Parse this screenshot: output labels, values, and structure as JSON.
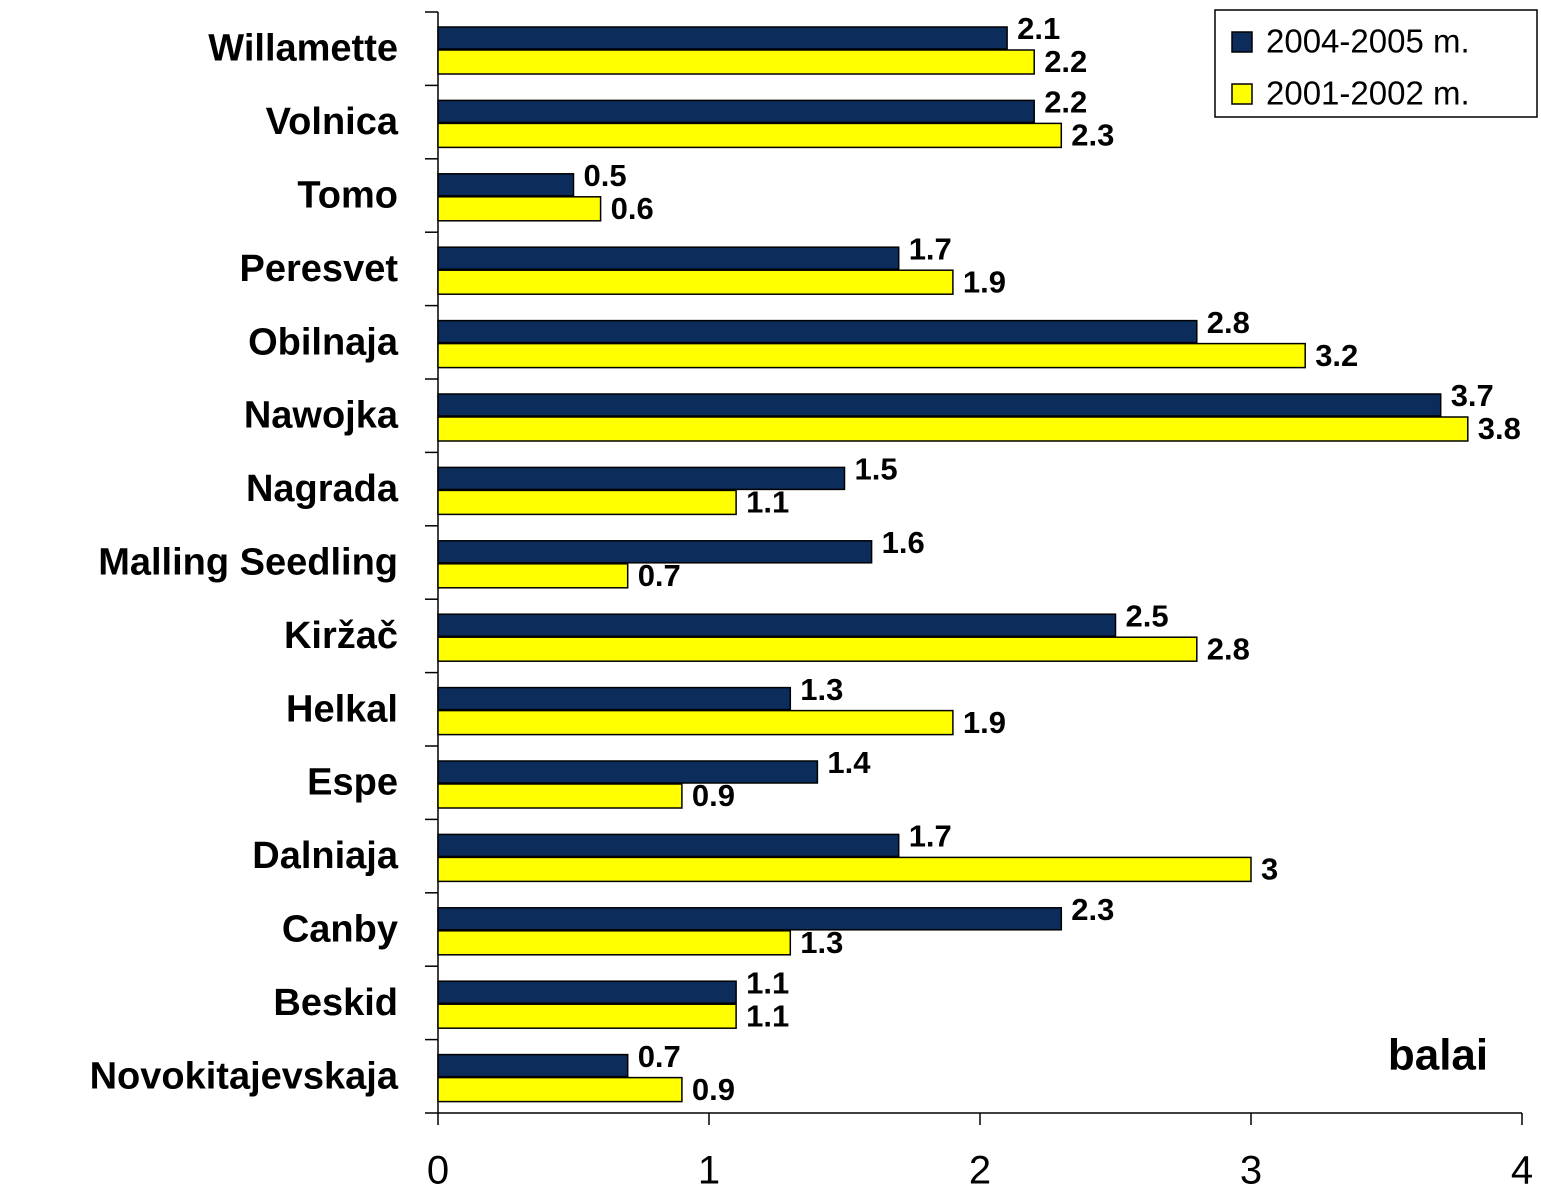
{
  "chart_data": {
    "type": "bar",
    "orientation": "horizontal",
    "categories": [
      "Willamette",
      "Volnica",
      "Tomo",
      "Peresvet",
      "Obilnaja",
      "Nawojka",
      "Nagrada",
      "Malling Seedling",
      "Kiržač",
      "Helkal",
      "Espe",
      "Dalniaja",
      "Canby",
      "Beskid",
      "Novokitajevskaja"
    ],
    "series": [
      {
        "name": "2004-2005 m.",
        "color": "#0c2c5c",
        "values": [
          2.1,
          2.2,
          0.5,
          1.7,
          2.8,
          3.7,
          1.5,
          1.6,
          2.5,
          1.3,
          1.4,
          1.7,
          2.3,
          1.1,
          0.7
        ]
      },
      {
        "name": "2001-2002 m.",
        "color": "#ffff00",
        "values": [
          2.2,
          2.3,
          0.6,
          1.9,
          3.2,
          3.8,
          1.1,
          0.7,
          2.8,
          1.9,
          0.9,
          3,
          1.3,
          1.1,
          0.9
        ]
      }
    ],
    "xlim": [
      0,
      4
    ],
    "xticks": [
      0,
      1,
      2,
      3,
      4
    ],
    "grid": false,
    "legend": "top-right",
    "annotation": "balai"
  }
}
